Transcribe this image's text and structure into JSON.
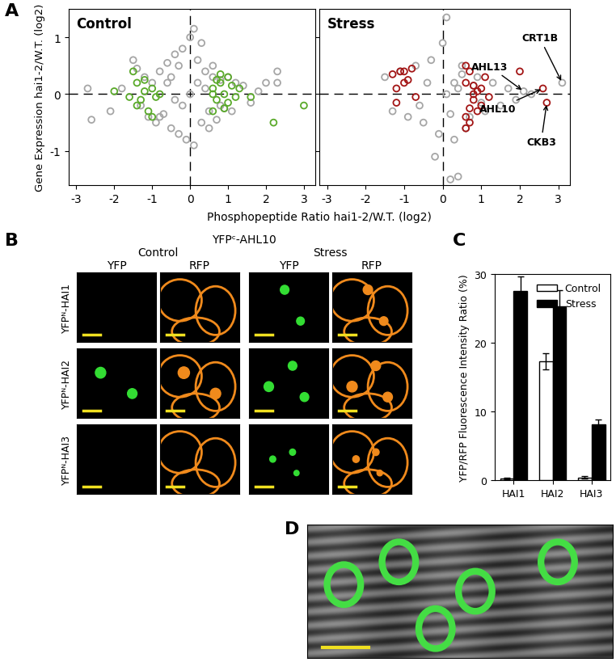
{
  "panel_labels": [
    "A",
    "B",
    "C",
    "D"
  ],
  "chart_data": [
    {
      "type": "scatter",
      "title": "Control",
      "xlabel": "Phosphopeptide Ratio hai1-2/W.T. (log2)",
      "ylabel": "Gene Expression hai1-2/W.T. (log2)",
      "xlim": [
        -3.2,
        3.3
      ],
      "xticks": [
        -3,
        -2,
        -1,
        0,
        1,
        2,
        3
      ],
      "ylim": [
        -1.6,
        1.5
      ],
      "yticks": [
        -1,
        0,
        1
      ],
      "series": [
        {
          "color": "#a6a6a6",
          "marker": "o",
          "x": [
            -2.7,
            -2.6,
            -2.1,
            -1.8,
            -1.5,
            -1.4,
            -1.3,
            -1.2,
            -1.1,
            -1.0,
            -0.9,
            -0.8,
            -0.7,
            -0.6,
            -0.5,
            -0.4,
            -0.3,
            -0.2,
            -0.1,
            0.0,
            0.1,
            0.2,
            0.3,
            0.4,
            0.5,
            0.6,
            0.7,
            0.8,
            0.9,
            1.0,
            1.1,
            1.2,
            1.4,
            1.6,
            1.8,
            2.0,
            2.3,
            2.3,
            0.1,
            0.3,
            -0.3,
            0.5,
            -0.5,
            0.2,
            -0.2,
            0.0,
            0.4,
            -0.4,
            0.6,
            -0.6,
            0.8,
            -0.8
          ],
          "values": [
            0.1,
            -0.45,
            -0.3,
            0.1,
            0.6,
            0.45,
            -0.2,
            0.3,
            -0.4,
            0.2,
            -0.5,
            0.4,
            -0.35,
            0.55,
            -0.6,
            0.7,
            -0.7,
            0.8,
            -0.8,
            1.0,
            1.15,
            0.6,
            -0.5,
            0.4,
            -0.3,
            0.3,
            -0.45,
            0.25,
            -0.25,
            0.3,
            -0.3,
            0.2,
            0.15,
            -0.15,
            0.05,
            0.2,
            0.4,
            0.2,
            -0.9,
            0.9,
            0.5,
            -0.6,
            0.3,
            0.2,
            -0.2,
            0.0,
            0.1,
            -0.1,
            0.5,
            0.2,
            -0.2,
            -0.4
          ]
        },
        {
          "color": "#5aaa2a",
          "marker": "o",
          "x": [
            -1.5,
            -1.4,
            -1.3,
            -1.2,
            -1.1,
            -1.0,
            -0.9,
            -0.8,
            -1.4,
            -1.2,
            -1.0,
            -2.0,
            -1.6,
            0.6,
            0.7,
            0.8,
            0.9,
            1.0,
            1.1,
            1.2,
            0.6,
            0.8,
            1.0,
            0.7,
            0.9,
            1.6,
            2.2,
            3.0,
            0.6,
            1.3
          ],
          "values": [
            0.4,
            0.2,
            -0.1,
            0.05,
            -0.3,
            0.1,
            -0.05,
            0.0,
            -0.2,
            0.25,
            -0.4,
            0.05,
            -0.05,
            0.1,
            -0.1,
            0.2,
            0.0,
            -0.15,
            0.15,
            -0.05,
            -0.3,
            0.35,
            0.3,
            0.25,
            -0.25,
            -0.05,
            -0.5,
            -0.2,
            0.0,
            0.1
          ]
        }
      ]
    },
    {
      "type": "scatter",
      "title": "Stress",
      "tick_labels": "x",
      "xlim": [
        -3.2,
        3.3
      ],
      "xticks": [
        -3,
        -2,
        -1,
        0,
        1,
        2,
        3
      ],
      "ylim": [
        -1.6,
        1.5
      ],
      "yticks": [
        -1,
        0,
        1
      ],
      "series": [
        {
          "color": "#a6a6a6",
          "marker": "o",
          "x": [
            -1.5,
            -1.3,
            -1.1,
            -0.9,
            -0.7,
            -0.5,
            -0.3,
            -0.1,
            0.1,
            0.3,
            0.5,
            0.7,
            0.9,
            1.1,
            1.3,
            1.5,
            1.7,
            1.9,
            2.1,
            2.3,
            3.1,
            0.2,
            0.4,
            -0.2,
            0.0,
            0.6,
            0.1,
            0.3,
            -0.4,
            0.8,
            1.0,
            -0.6,
            0.5,
            0.2,
            0.4
          ],
          "values": [
            0.3,
            -0.3,
            0.4,
            -0.4,
            0.5,
            -0.5,
            0.6,
            -0.7,
            1.35,
            -0.8,
            0.5,
            -0.4,
            0.3,
            -0.3,
            0.2,
            -0.2,
            0.1,
            -0.1,
            0.05,
            0.0,
            0.2,
            -1.5,
            -1.45,
            -1.1,
            0.9,
            -0.6,
            0.0,
            0.2,
            0.2,
            0.15,
            -0.15,
            -0.2,
            0.35,
            -0.35,
            0.1
          ]
        },
        {
          "color": "#a31515",
          "marker": "o",
          "x": [
            -1.3,
            -1.2,
            -1.0,
            -0.9,
            -0.8,
            -1.1,
            -0.7,
            -1.2,
            -1.0,
            0.6,
            0.7,
            0.8,
            0.9,
            1.0,
            0.6,
            0.7,
            0.8,
            0.9,
            1.1,
            0.6,
            0.8,
            1.0,
            1.2,
            2.0,
            2.6,
            2.7,
            0.6,
            0.7
          ],
          "values": [
            0.35,
            0.1,
            0.4,
            0.25,
            0.45,
            0.4,
            -0.05,
            -0.15,
            0.2,
            0.5,
            0.4,
            -0.1,
            0.05,
            -0.2,
            -0.4,
            -0.5,
            0.15,
            -0.3,
            0.3,
            -0.6,
            0.0,
            0.1,
            -0.05,
            0.4,
            0.1,
            -0.15,
            0.2,
            -0.25
          ]
        }
      ],
      "annotations": [
        {
          "text": "CRT1B",
          "x": 3.1,
          "y": 0.2
        },
        {
          "text": "AHL13",
          "x": 2.1,
          "y": 0.05
        },
        {
          "text": "AHL10",
          "x": 2.6,
          "y": 0.1
        },
        {
          "text": "CKB3",
          "x": 2.7,
          "y": -0.15
        }
      ]
    },
    {
      "type": "bar",
      "ylabel": "YFP/RFP Fluorescence Intensity Ratio (%)",
      "categories": [
        "HAI1",
        "HAI2",
        "HAI3"
      ],
      "ylim": [
        0,
        30
      ],
      "yticks": [
        0,
        10,
        20,
        30
      ],
      "legend": "upper right",
      "series": [
        {
          "name": "Control",
          "color": "#ffffff",
          "values": [
            0.2,
            17.3,
            0.4
          ],
          "errors": [
            0.1,
            1.2,
            0.2
          ]
        },
        {
          "name": "Stress",
          "color": "#000000",
          "values": [
            27.5,
            25.3,
            8.1
          ],
          "errors": [
            2.2,
            2.3,
            0.7
          ]
        }
      ]
    }
  ],
  "images": {
    "title": "YFPᶜ-AHL10",
    "conditions": [
      "Control",
      "Stress"
    ],
    "channels": [
      "YFP",
      "RFP"
    ],
    "rows": [
      "YFPᴺ-HAI1",
      "YFPᴺ-HAI2",
      "YFPᴺ-HAI3"
    ]
  }
}
